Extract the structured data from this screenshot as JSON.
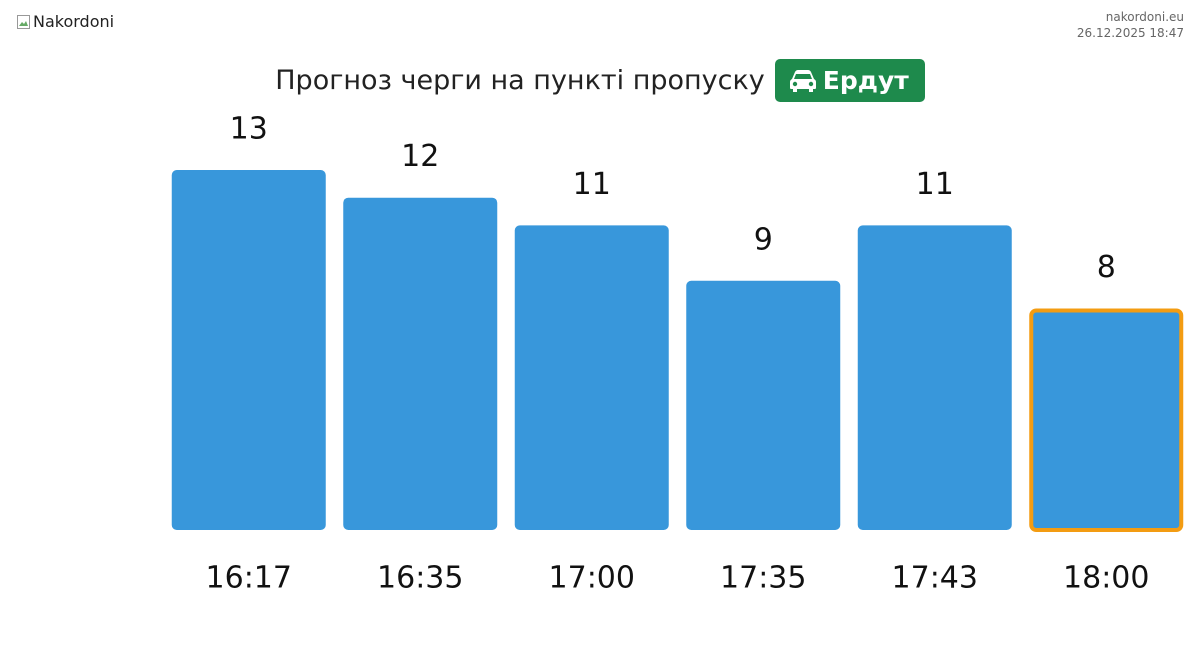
{
  "header": {
    "logo_alt": "Nakordoni",
    "site": "nakordoni.eu",
    "timestamp": "26.12.2025 18:47"
  },
  "chart_data": {
    "type": "bar",
    "title": "Прогноз черги на пункті пропуску",
    "checkpoint": "Ердут",
    "categories": [
      "16:17",
      "16:35",
      "17:00",
      "17:35",
      "17:43",
      "18:00"
    ],
    "values": [
      13,
      12,
      11,
      9,
      11,
      8
    ],
    "color": "#3897db",
    "badge_color": "#1e8a4c",
    "highlight_index": 5,
    "highlight_color": "#f39c12"
  }
}
